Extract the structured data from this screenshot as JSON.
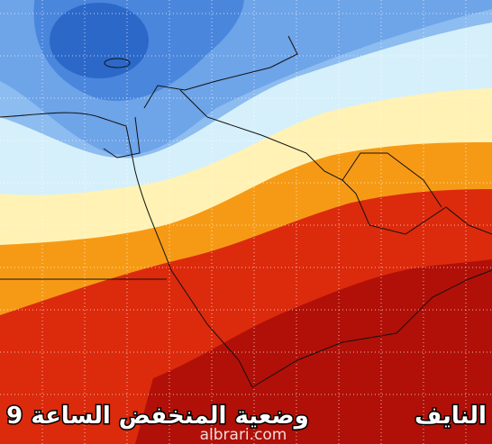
{
  "map": {
    "title": "وضعية المنخفض الساعة 9",
    "author": "النايف",
    "watermark": "albrari.com"
  }
}
